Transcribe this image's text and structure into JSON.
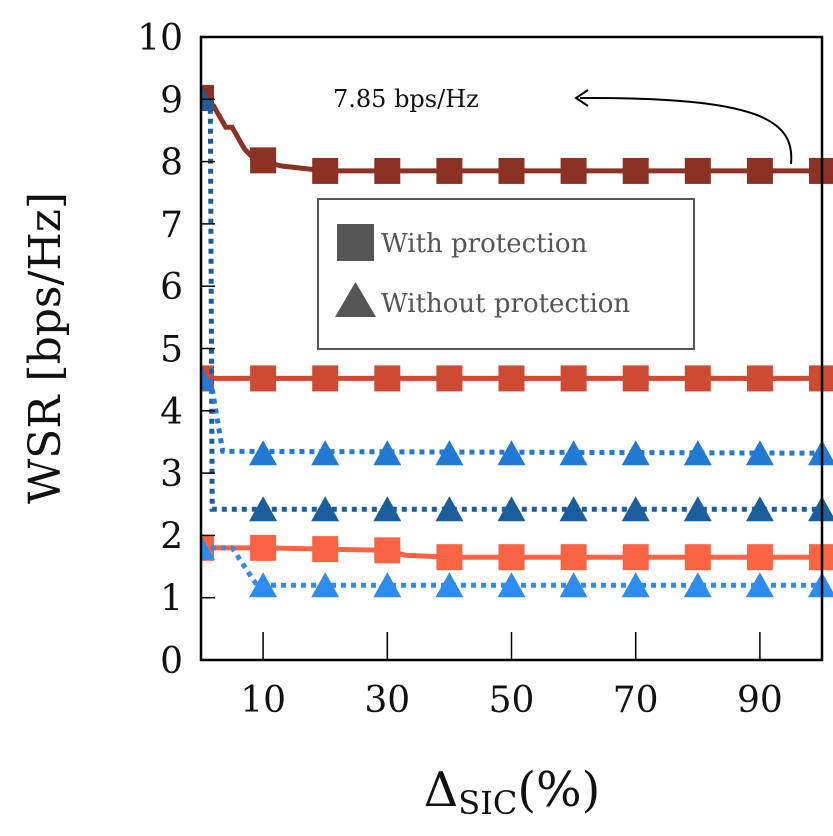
{
  "chart_data": {
    "type": "line",
    "x_axis": {
      "label_main": "Δ",
      "label_sub": "SIC",
      "label_unit": "(%)",
      "range": [
        0,
        100
      ],
      "ticks": [
        10,
        30,
        50,
        70,
        90
      ],
      "tick_labels": [
        "10",
        "30",
        "50",
        "70",
        "90"
      ]
    },
    "y_axis": {
      "label": "WSR [bps/Hz]",
      "range": [
        0,
        10
      ],
      "ticks": [
        0,
        1,
        2,
        3,
        4,
        5,
        6,
        7,
        8,
        9,
        10
      ],
      "tick_labels": [
        "0",
        "1",
        "2",
        "3",
        "4",
        "5",
        "6",
        "7",
        "8",
        "9",
        "10"
      ]
    },
    "grid": false,
    "legend": {
      "placement": "center",
      "entries": [
        {
          "label": "With protection",
          "marker": "square"
        },
        {
          "label": "Without protection",
          "marker": "triangle"
        }
      ]
    },
    "annotation": {
      "text": "7.85 bps/Hz",
      "target": {
        "x": 95,
        "y": 7.85
      }
    },
    "series": [
      {
        "marker": "square",
        "color": "#8B3224",
        "dash": "solid",
        "line": [
          [
            0,
            9.02
          ],
          [
            2,
            8.9
          ],
          [
            4,
            8.55
          ],
          [
            5,
            8.55
          ],
          [
            7,
            8.2
          ],
          [
            9,
            8.0
          ],
          [
            10,
            8.0
          ],
          [
            13,
            7.93
          ],
          [
            20,
            7.85
          ],
          [
            100,
            7.85
          ]
        ],
        "markers": [
          [
            0,
            9.02
          ],
          [
            10,
            8.02
          ],
          [
            20,
            7.85
          ],
          [
            30,
            7.85
          ],
          [
            40,
            7.85
          ],
          [
            50,
            7.85
          ],
          [
            60,
            7.85
          ],
          [
            70,
            7.85
          ],
          [
            80,
            7.85
          ],
          [
            90,
            7.85
          ],
          [
            100,
            7.85
          ]
        ]
      },
      {
        "marker": "square",
        "color": "#CE4A33",
        "dash": "solid",
        "line": [
          [
            0,
            4.52
          ],
          [
            100,
            4.52
          ]
        ],
        "markers": [
          [
            0,
            4.52
          ],
          [
            10,
            4.52
          ],
          [
            20,
            4.52
          ],
          [
            30,
            4.52
          ],
          [
            40,
            4.52
          ],
          [
            50,
            4.52
          ],
          [
            60,
            4.52
          ],
          [
            70,
            4.52
          ],
          [
            80,
            4.52
          ],
          [
            90,
            4.52
          ],
          [
            100,
            4.52
          ]
        ]
      },
      {
        "marker": "square",
        "color": "#FA6343",
        "dash": "solid",
        "line": [
          [
            0,
            1.8
          ],
          [
            10,
            1.8
          ],
          [
            20,
            1.78
          ],
          [
            30,
            1.76
          ],
          [
            33,
            1.68
          ],
          [
            40,
            1.65
          ],
          [
            100,
            1.65
          ]
        ],
        "markers": [
          [
            0,
            1.8
          ],
          [
            10,
            1.8
          ],
          [
            20,
            1.78
          ],
          [
            30,
            1.76
          ],
          [
            40,
            1.65
          ],
          [
            50,
            1.65
          ],
          [
            60,
            1.65
          ],
          [
            70,
            1.65
          ],
          [
            80,
            1.65
          ],
          [
            90,
            1.65
          ],
          [
            100,
            1.65
          ]
        ]
      },
      {
        "marker": "triangle",
        "color": "#1A5E9E",
        "dash": "dotted",
        "line": [
          [
            0,
            9.02
          ],
          [
            1.5,
            9.02
          ],
          [
            1.8,
            2.42
          ],
          [
            100,
            2.42
          ]
        ],
        "markers": [
          [
            0,
            9.02
          ],
          [
            10,
            2.42
          ],
          [
            20,
            2.42
          ],
          [
            30,
            2.42
          ],
          [
            40,
            2.42
          ],
          [
            50,
            2.42
          ],
          [
            60,
            2.42
          ],
          [
            70,
            2.42
          ],
          [
            80,
            2.42
          ],
          [
            90,
            2.42
          ],
          [
            100,
            2.42
          ]
        ]
      },
      {
        "marker": "triangle",
        "color": "#2179D4",
        "dash": "dotted",
        "line": [
          [
            0,
            4.52
          ],
          [
            1.5,
            4.52
          ],
          [
            3.5,
            3.35
          ],
          [
            100,
            3.32
          ]
        ],
        "markers": [
          [
            0,
            4.52
          ],
          [
            10,
            3.32
          ],
          [
            20,
            3.32
          ],
          [
            30,
            3.32
          ],
          [
            40,
            3.32
          ],
          [
            50,
            3.32
          ],
          [
            60,
            3.32
          ],
          [
            70,
            3.32
          ],
          [
            80,
            3.32
          ],
          [
            90,
            3.32
          ],
          [
            100,
            3.32
          ]
        ]
      },
      {
        "marker": "triangle",
        "color": "#2E8CF0",
        "dash": "dotted",
        "line": [
          [
            0,
            1.8
          ],
          [
            5,
            1.8
          ],
          [
            9,
            1.2
          ],
          [
            100,
            1.2
          ]
        ],
        "markers": [
          [
            0,
            1.8
          ],
          [
            10,
            1.2
          ],
          [
            20,
            1.2
          ],
          [
            30,
            1.2
          ],
          [
            40,
            1.2
          ],
          [
            50,
            1.2
          ],
          [
            60,
            1.2
          ],
          [
            70,
            1.2
          ],
          [
            80,
            1.2
          ],
          [
            90,
            1.2
          ],
          [
            100,
            1.2
          ]
        ]
      }
    ]
  }
}
